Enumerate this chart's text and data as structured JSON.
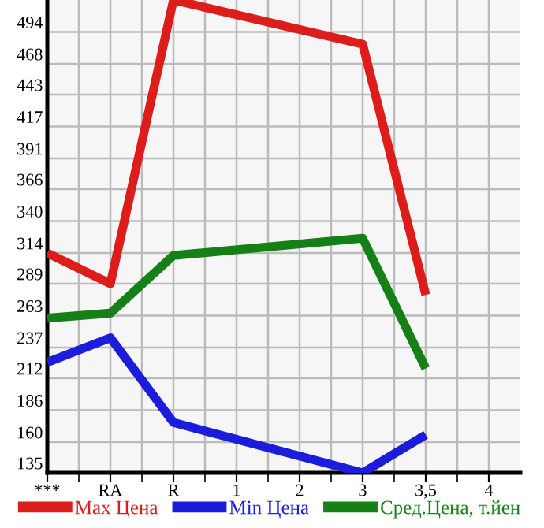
{
  "chart_data": {
    "type": "line",
    "categories": [
      "***",
      "RA",
      "R",
      "1",
      "2",
      "3",
      "3,5",
      "4"
    ],
    "series": [
      {
        "name": "Max Цена",
        "color": "#dd1c1c",
        "values": [
          314,
          289,
          520,
          null,
          null,
          484,
          280,
          null
        ]
      },
      {
        "name": "Min Цена",
        "color": "#1c1cdd",
        "values": [
          225,
          245,
          176,
          null,
          null,
          135,
          166,
          null
        ]
      },
      {
        "name": "Сред.Цена, т.йен",
        "color": "#158015",
        "values": [
          261,
          265,
          312,
          null,
          null,
          326,
          220,
          null
        ]
      }
    ],
    "ylim": [
      135,
      520
    ],
    "yticks": [
      135,
      160,
      186,
      212,
      237,
      263,
      289,
      314,
      340,
      366,
      391,
      417,
      443,
      468,
      494
    ],
    "grid": true,
    "legend": "bottom",
    "marker": "none",
    "line_style": "solid"
  }
}
